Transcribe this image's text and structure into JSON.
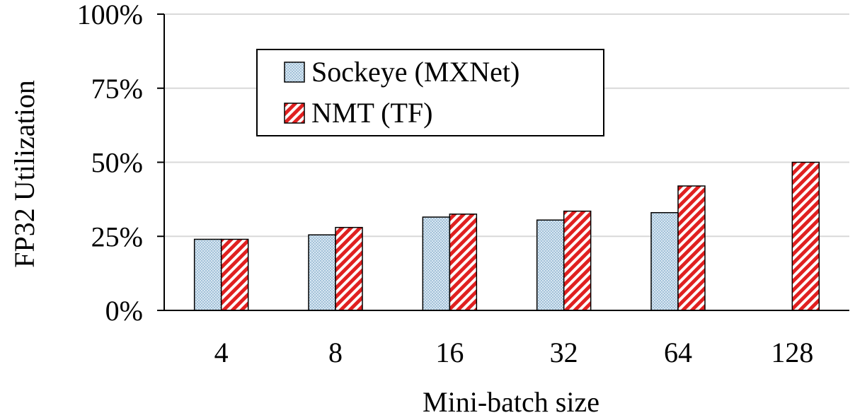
{
  "chart_data": {
    "type": "bar",
    "xlabel": "Mini-batch size",
    "ylabel": "FP32 Utilization",
    "categories": [
      "4",
      "8",
      "16",
      "32",
      "64",
      "128"
    ],
    "ylim": [
      0,
      100
    ],
    "yticks": [
      0,
      25,
      50,
      75,
      100
    ],
    "ytick_labels": [
      "0%",
      "25%",
      "50%",
      "75%",
      "100%"
    ],
    "grid": true,
    "legend_position": "top-left",
    "series": [
      {
        "name": "Sockeye (MXNet)",
        "values": [
          24,
          25.5,
          31.5,
          30.5,
          33,
          null
        ],
        "color": "#a9c7dc",
        "pattern": "dotted"
      },
      {
        "name": "NMT (TF)",
        "values": [
          24,
          28,
          32.5,
          33.5,
          42,
          50
        ],
        "color": "#e02020",
        "pattern": "diagonal-hatch"
      }
    ]
  }
}
